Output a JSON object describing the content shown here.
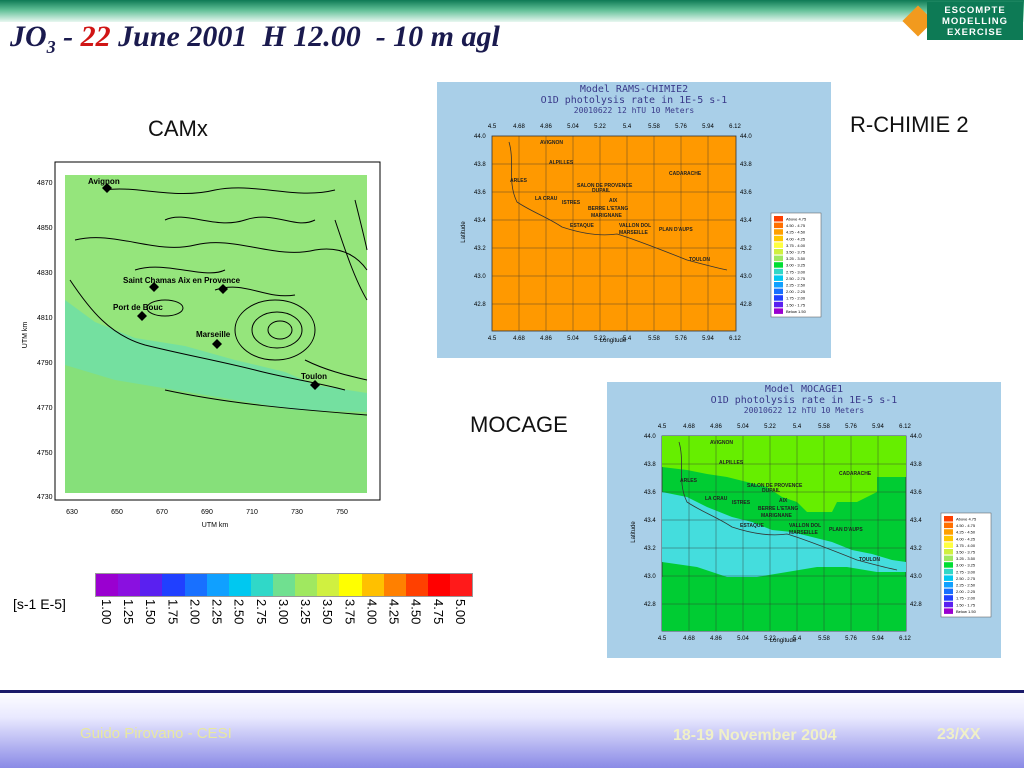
{
  "slide": {
    "title_prefix": "JO",
    "title_sub": "3",
    "title_dash": " - ",
    "title_day": "22",
    "title_rest": " June 2001  H 12.00  - 10 m agl"
  },
  "logo": {
    "line1": "ESCOMPTE",
    "line2": "MODELLING",
    "line3": "EXERCISE"
  },
  "labels": {
    "camx": "CAMx",
    "rchimie": "R-CHIMIE 2",
    "mocage": "MOCAGE",
    "unit": "[s-1 E-5]"
  },
  "camx_map": {
    "ylabel": "UTM km",
    "xlabel": "UTM km",
    "x_ticks": [
      "630",
      "650",
      "670",
      "690",
      "710",
      "730",
      "750"
    ],
    "y_ticks": [
      "4870",
      "4850",
      "4830",
      "4810",
      "4790",
      "4770",
      "4750",
      "4730"
    ],
    "cities": [
      "Avignon",
      "Saint Chamas Aix en Provence",
      "Port de Bouc",
      "Marseille",
      "Toulon"
    ]
  },
  "rchimie_map": {
    "title1": "Model RAMS-CHIMIE2",
    "title2": "O1D photolysis rate in 1E-5 s-1",
    "title3": "20010622  12 hTU  10 Meters",
    "xlabel": "Longitude",
    "ylabel": "Latitude",
    "x_ticks": [
      "4.5",
      "4.68",
      "4.86",
      "5.04",
      "5.22",
      "5.4",
      "5.58",
      "5.76",
      "5.94",
      "6.12"
    ],
    "y_ticks": [
      "44.0",
      "43.8",
      "43.6",
      "43.4",
      "43.2",
      "43.0",
      "42.8"
    ],
    "cities": [
      "AVIGNON",
      "ALPILLES",
      "ARLES",
      "SALON DE PROVENCE",
      "DUPAIL",
      "CADARACHE",
      "AIX",
      "LA CRAU",
      "ISTRES",
      "BERRE L'ETANG",
      "MARIGNANE",
      "VALLON DOL",
      "PLAN D'AUPS",
      "ESTAQUE",
      "MARSEILLE",
      "TOULON"
    ]
  },
  "mocage_map": {
    "title1": "Model MOCAGE1",
    "title2": "O1D photolysis rate in 1E-5 s-1",
    "title3": "20010622  12 hTU  10 Meters",
    "xlabel": "Longitude",
    "ylabel": "Latitude",
    "x_ticks": [
      "4.5",
      "4.68",
      "4.86",
      "5.04",
      "5.22",
      "5.4",
      "5.58",
      "5.76",
      "5.94",
      "6.12"
    ],
    "y_ticks": [
      "44.0",
      "43.8",
      "43.6",
      "43.4",
      "43.2",
      "43.0",
      "42.8"
    ],
    "cities": [
      "AVIGNON",
      "ALPILLES",
      "ARLES",
      "SALON DE PROVENCE",
      "DUPAIL",
      "CADARACHE",
      "AIX",
      "LA CRAU",
      "ISTRES",
      "BERRE L'ETANG",
      "MARIGNANE",
      "VALLON DOL",
      "PLAN D'AUPS",
      "ESTAQUE",
      "MARSEILLE",
      "TOULON"
    ]
  },
  "legend_small": [
    "Above 4.75",
    "4.50 - 4.75",
    "4.25 - 4.50",
    "4.00 - 4.25",
    "3.75 - 4.00",
    "3.50 - 3.75",
    "3.25 - 3.50",
    "3.00 - 3.25",
    "2.75 - 3.00",
    "2.50 - 2.75",
    "2.25 - 2.50",
    "2.00 - 2.25",
    "1.75 - 2.00",
    "1.50 - 1.75",
    "Below 1.50"
  ],
  "colorbar": {
    "colors": [
      "#9a00d0",
      "#8a10e0",
      "#5a20f0",
      "#2040ff",
      "#1870ff",
      "#10a0ff",
      "#00c8f0",
      "#30d8c8",
      "#70e090",
      "#a0e860",
      "#d0f040",
      "#ffff00",
      "#ffc000",
      "#ff8000",
      "#ff4000",
      "#ff0000",
      "#ff1a1a"
    ],
    "labels": [
      "1.00",
      "1.25",
      "1.50",
      "1.75",
      "2.00",
      "2.25",
      "2.50",
      "2.75",
      "3.00",
      "3.25",
      "3.50",
      "3.75",
      "4.00",
      "4.25",
      "4.50",
      "4.75",
      "5.00"
    ]
  },
  "footer": {
    "author": "Guido Pirovano - CESI",
    "date": "18-19 November 2004",
    "page": "23/XX"
  }
}
